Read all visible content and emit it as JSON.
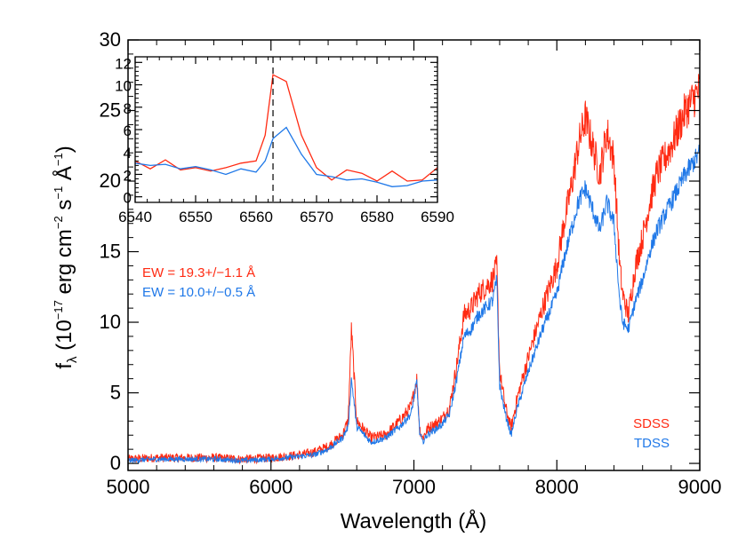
{
  "chart_data": [
    {
      "type": "line",
      "xlabel": "Wavelength (Å)",
      "ylabel_parts": {
        "f": "f",
        "lambda": "λ",
        "open": " (10",
        "e17": "−17",
        "erg": " erg cm",
        "e2": "−2",
        "s": " s",
        "e1a": "−1",
        "A": " Å",
        "e1b": "−1",
        "close": ")"
      },
      "xlim": [
        5000,
        9000
      ],
      "ylim": [
        -0.5,
        30
      ],
      "xticks": [
        "5000",
        "6000",
        "7000",
        "8000",
        "9000"
      ],
      "yticks": [
        "0",
        "5",
        "10",
        "15",
        "20",
        "25",
        "30"
      ],
      "legend_placement": "bottom-right",
      "legend": [
        "SDSS",
        "TDSS"
      ],
      "annotations": [
        "EW = 19.3+/−1.1 Å",
        "EW = 10.0+/−0.5 Å"
      ],
      "series": [
        {
          "name": "SDSS",
          "color": "#ff2a12",
          "noise": 0.5,
          "x": [
            5000,
            5200,
            5400,
            5600,
            5800,
            6000,
            6100,
            6200,
            6300,
            6400,
            6500,
            6540,
            6563,
            6600,
            6700,
            6800,
            6900,
            6980,
            7020,
            7040,
            7060,
            7100,
            7150,
            7200,
            7250,
            7300,
            7350,
            7400,
            7450,
            7500,
            7550,
            7580,
            7600,
            7640,
            7680,
            7720,
            7800,
            7900,
            8000,
            8050,
            8100,
            8150,
            8200,
            8250,
            8300,
            8350,
            8400,
            8440,
            8460,
            8500,
            8550,
            8600,
            8650,
            8700,
            8800,
            8900,
            9000
          ],
          "y": [
            0.3,
            0.4,
            0.4,
            0.4,
            0.3,
            0.4,
            0.5,
            0.6,
            0.8,
            1.2,
            2.0,
            3.0,
            9.5,
            3.0,
            1.8,
            2.0,
            3.0,
            4.0,
            6.0,
            2.5,
            1.8,
            2.5,
            2.8,
            3.2,
            4.0,
            7.0,
            10.5,
            11.0,
            12.0,
            12.5,
            13.0,
            14.0,
            6.5,
            4.0,
            2.5,
            4.5,
            7.5,
            11.0,
            14.0,
            17.0,
            19.5,
            22.5,
            24.5,
            22.5,
            20.5,
            23.5,
            21.5,
            14.0,
            12.0,
            10.5,
            14.0,
            16.0,
            18.5,
            20.5,
            22.5,
            25.0,
            26.5
          ]
        },
        {
          "name": "TDSS",
          "color": "#1f78e8",
          "noise": 0.3,
          "x": [
            5000,
            5200,
            5400,
            5600,
            5800,
            6000,
            6100,
            6200,
            6300,
            6400,
            6500,
            6540,
            6563,
            6600,
            6700,
            6800,
            6900,
            6980,
            7020,
            7040,
            7060,
            7100,
            7150,
            7200,
            7250,
            7300,
            7350,
            7400,
            7450,
            7500,
            7550,
            7580,
            7600,
            7640,
            7680,
            7720,
            7800,
            7900,
            8000,
            8050,
            8100,
            8150,
            8200,
            8250,
            8300,
            8350,
            8400,
            8440,
            8460,
            8500,
            8550,
            8600,
            8650,
            8700,
            8800,
            8900,
            9000
          ],
          "y": [
            0.2,
            0.3,
            0.3,
            0.3,
            0.2,
            0.3,
            0.4,
            0.5,
            0.6,
            1.0,
            1.8,
            2.6,
            6.0,
            2.6,
            1.5,
            1.8,
            2.6,
            3.5,
            5.8,
            2.2,
            1.5,
            2.1,
            2.4,
            2.8,
            3.5,
            6.0,
            9.0,
            9.5,
            10.5,
            11.0,
            11.5,
            13.0,
            5.5,
            3.5,
            2.0,
            3.8,
            6.5,
            9.5,
            12.0,
            14.5,
            16.5,
            18.5,
            19.5,
            18.0,
            16.5,
            18.5,
            17.0,
            11.5,
            10.0,
            9.5,
            11.5,
            13.0,
            15.0,
            16.5,
            18.5,
            20.5,
            22.0
          ]
        }
      ]
    },
    {
      "type": "line",
      "xlim": [
        6540,
        6590
      ],
      "ylim": [
        -0.5,
        12.5
      ],
      "xticks": [
        "6540",
        "6550",
        "6560",
        "6570",
        "6580",
        "6590"
      ],
      "yticks": [
        "0",
        "2",
        "4",
        "6",
        "8",
        "10",
        "12"
      ],
      "marker_line_x": 6562.8,
      "series": [
        {
          "name": "SDSS",
          "color": "#ff2a12",
          "x": [
            6540,
            6542.5,
            6545,
            6547.5,
            6550,
            6552.5,
            6555,
            6557.5,
            6560,
            6561.5,
            6562.8,
            6565,
            6567.5,
            6570,
            6572.5,
            6575,
            6577.5,
            6580,
            6582.5,
            6585,
            6587.5,
            6590
          ],
          "y": [
            3.2,
            2.5,
            3.3,
            2.4,
            2.6,
            2.3,
            2.6,
            3.0,
            3.2,
            5.5,
            10.9,
            10.3,
            5.5,
            2.6,
            1.5,
            2.4,
            2.1,
            1.4,
            2.3,
            1.4,
            1.5,
            2.6
          ]
        },
        {
          "name": "TDSS",
          "color": "#1f78e8",
          "x": [
            6540,
            6542.5,
            6545,
            6547.5,
            6550,
            6552.5,
            6555,
            6557.5,
            6560,
            6561.5,
            6562.8,
            6565,
            6567.5,
            6570,
            6572.5,
            6575,
            6577.5,
            6580,
            6582.5,
            6585,
            6587.5,
            6590
          ],
          "y": [
            3.0,
            2.8,
            2.9,
            2.5,
            2.7,
            2.4,
            2.0,
            2.5,
            2.2,
            3.2,
            5.2,
            6.2,
            3.8,
            2.0,
            1.8,
            1.5,
            1.6,
            1.3,
            0.9,
            1.0,
            1.4,
            1.5
          ]
        }
      ]
    }
  ]
}
